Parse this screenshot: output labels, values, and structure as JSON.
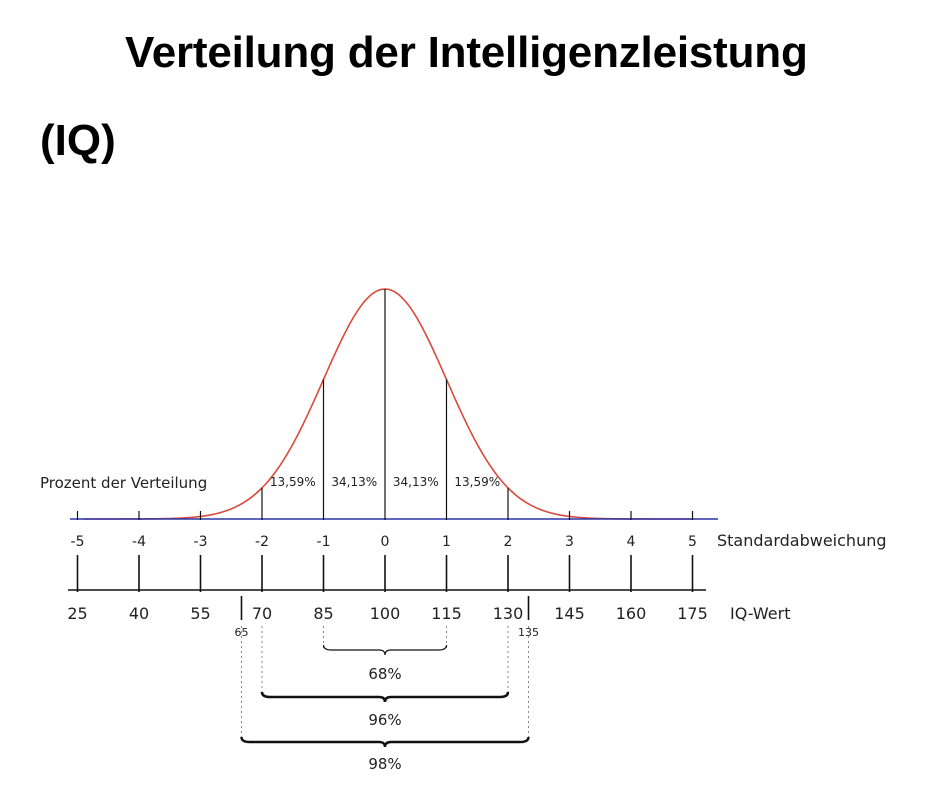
{
  "title_line1": "Verteilung der Intelligenzleistung",
  "title_line2": "(IQ)",
  "chart_data": {
    "type": "area",
    "curve": "normal",
    "colors": {
      "curve": "#d94a3d",
      "baseline": "#2b35a8",
      "ink": "#111111"
    },
    "label_percent": "Prozent der Verteilung",
    "label_sd": "Standardabweichung",
    "label_iq": "IQ-Wert",
    "sd_ticks": [
      "-5",
      "-4",
      "-3",
      "-2",
      "-1",
      "0",
      "1",
      "2",
      "3",
      "4",
      "5"
    ],
    "iq_ticks": [
      "25",
      "40",
      "55",
      "70",
      "85",
      "100",
      "115",
      "130",
      "145",
      "160",
      "175"
    ],
    "extra_iq": [
      "65",
      "135"
    ],
    "segments": [
      {
        "from": -2,
        "to": -1,
        "label": "13,59%"
      },
      {
        "from": -1,
        "to": 0,
        "label": "34,13%"
      },
      {
        "from": 0,
        "to": 1,
        "label": "34,13%"
      },
      {
        "from": 1,
        "to": 2,
        "label": "13,59%"
      }
    ],
    "ranges": [
      {
        "from": 85,
        "to": 115,
        "label": "68%"
      },
      {
        "from": 70,
        "to": 130,
        "label": "96%"
      },
      {
        "from": 65,
        "to": 135,
        "label": "98%"
      }
    ]
  }
}
